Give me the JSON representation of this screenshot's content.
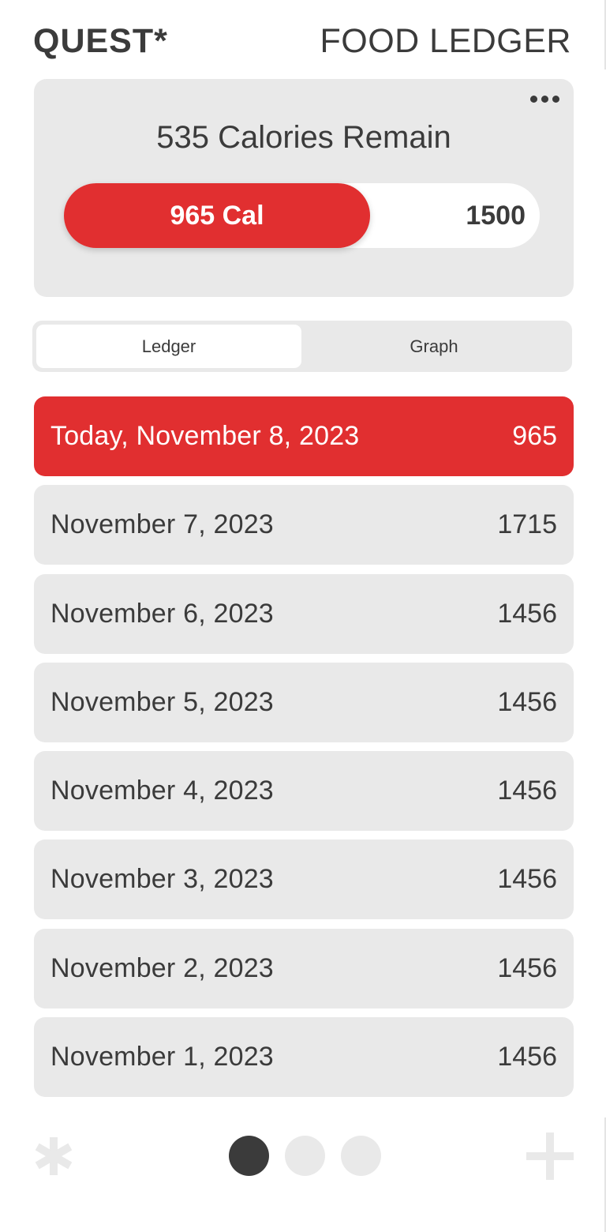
{
  "header": {
    "brand": "QUEST*",
    "title": "FOOD LEDGER"
  },
  "summary": {
    "more_icon": "ellipsis-icon",
    "remaining_text": "535 Calories Remain",
    "consumed_label": "965 Cal",
    "consumed": 965,
    "goal_label": "1500",
    "goal": 1500,
    "colors": {
      "accent": "#e12f30",
      "card": "#e9e9e9",
      "track": "#ffffff"
    }
  },
  "tabs": [
    {
      "label": "Ledger",
      "active": true
    },
    {
      "label": "Graph",
      "active": false
    }
  ],
  "ledger": [
    {
      "date": "Today, November 8, 2023",
      "calories": "965",
      "today": true
    },
    {
      "date": "November 7, 2023",
      "calories": "1715",
      "today": false
    },
    {
      "date": "November 6, 2023",
      "calories": "1456",
      "today": false
    },
    {
      "date": "November 5, 2023",
      "calories": "1456",
      "today": false
    },
    {
      "date": "November 4, 2023",
      "calories": "1456",
      "today": false
    },
    {
      "date": "November 3, 2023",
      "calories": "1456",
      "today": false
    },
    {
      "date": "November 2, 2023",
      "calories": "1456",
      "today": false
    },
    {
      "date": "November 1, 2023",
      "calories": "1456",
      "today": false
    }
  ],
  "footer": {
    "left_icon": "asterisk-icon",
    "right_icon": "plus-icon",
    "pages": 3,
    "current_page": 1
  }
}
